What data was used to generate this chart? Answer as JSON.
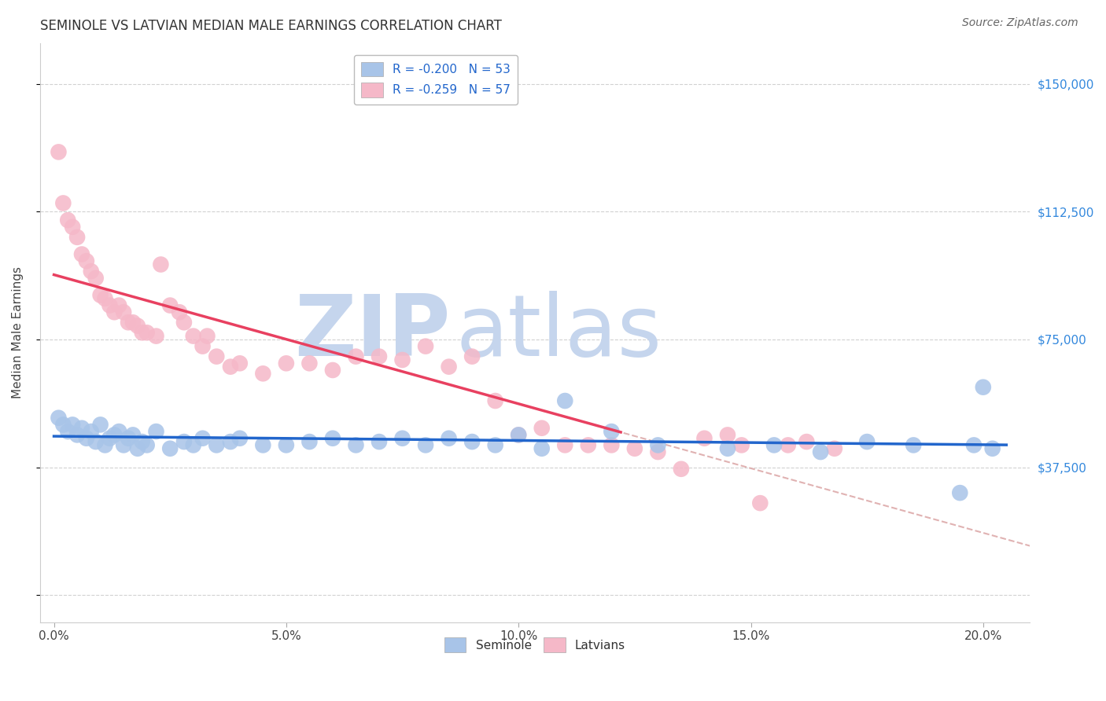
{
  "title": "SEMINOLE VS LATVIAN MEDIAN MALE EARNINGS CORRELATION CHART",
  "source": "Source: ZipAtlas.com",
  "xlabel_ticks": [
    "0.0%",
    "5.0%",
    "10.0%",
    "15.0%",
    "20.0%"
  ],
  "xlabel_vals": [
    0.0,
    0.05,
    0.1,
    0.15,
    0.2
  ],
  "ylabel": "Median Male Earnings",
  "yticks": [
    0,
    37500,
    75000,
    112500,
    150000
  ],
  "ytick_labels": [
    "",
    "$37,500",
    "$75,000",
    "$112,500",
    "$150,000"
  ],
  "seminole_color": "#A8C4E8",
  "latvian_color": "#F5B8C8",
  "seminole_line_color": "#2266CC",
  "latvian_line_color": "#E84060",
  "dashed_line_color": "#DDAAAA",
  "watermark_zip_color": "#C5D5ED",
  "watermark_atlas_color": "#C5D5ED",
  "seminole_x": [
    0.001,
    0.002,
    0.003,
    0.004,
    0.005,
    0.006,
    0.007,
    0.008,
    0.009,
    0.01,
    0.011,
    0.012,
    0.013,
    0.014,
    0.015,
    0.016,
    0.017,
    0.018,
    0.019,
    0.02,
    0.022,
    0.025,
    0.028,
    0.03,
    0.032,
    0.035,
    0.038,
    0.04,
    0.045,
    0.05,
    0.055,
    0.06,
    0.065,
    0.07,
    0.075,
    0.08,
    0.085,
    0.09,
    0.095,
    0.1,
    0.105,
    0.11,
    0.12,
    0.13,
    0.145,
    0.155,
    0.165,
    0.175,
    0.185,
    0.195,
    0.198,
    0.2,
    0.202
  ],
  "seminole_y": [
    52000,
    50000,
    48000,
    50000,
    47000,
    49000,
    46000,
    48000,
    45000,
    50000,
    44000,
    46000,
    47000,
    48000,
    44000,
    46000,
    47000,
    43000,
    45000,
    44000,
    48000,
    43000,
    45000,
    44000,
    46000,
    44000,
    45000,
    46000,
    44000,
    44000,
    45000,
    46000,
    44000,
    45000,
    46000,
    44000,
    46000,
    45000,
    44000,
    47000,
    43000,
    57000,
    48000,
    44000,
    43000,
    44000,
    42000,
    45000,
    44000,
    30000,
    44000,
    61000,
    43000
  ],
  "latvian_x": [
    0.001,
    0.002,
    0.003,
    0.004,
    0.005,
    0.006,
    0.007,
    0.008,
    0.009,
    0.01,
    0.011,
    0.012,
    0.013,
    0.014,
    0.015,
    0.016,
    0.017,
    0.018,
    0.019,
    0.02,
    0.022,
    0.023,
    0.025,
    0.027,
    0.028,
    0.03,
    0.032,
    0.033,
    0.035,
    0.038,
    0.04,
    0.045,
    0.05,
    0.055,
    0.06,
    0.065,
    0.07,
    0.075,
    0.08,
    0.085,
    0.09,
    0.095,
    0.1,
    0.105,
    0.11,
    0.115,
    0.12,
    0.125,
    0.13,
    0.135,
    0.14,
    0.145,
    0.148,
    0.152,
    0.158,
    0.162,
    0.168
  ],
  "latvian_y": [
    130000,
    115000,
    110000,
    108000,
    105000,
    100000,
    98000,
    95000,
    93000,
    88000,
    87000,
    85000,
    83000,
    85000,
    83000,
    80000,
    80000,
    79000,
    77000,
    77000,
    76000,
    97000,
    85000,
    83000,
    80000,
    76000,
    73000,
    76000,
    70000,
    67000,
    68000,
    65000,
    68000,
    68000,
    66000,
    70000,
    70000,
    69000,
    73000,
    67000,
    70000,
    57000,
    47000,
    49000,
    44000,
    44000,
    44000,
    43000,
    42000,
    37000,
    46000,
    47000,
    44000,
    27000,
    44000,
    45000,
    43000
  ],
  "xlim": [
    -0.003,
    0.21
  ],
  "ylim": [
    -8000,
    162000
  ],
  "figsize": [
    14.06,
    8.92
  ],
  "dpi": 100
}
